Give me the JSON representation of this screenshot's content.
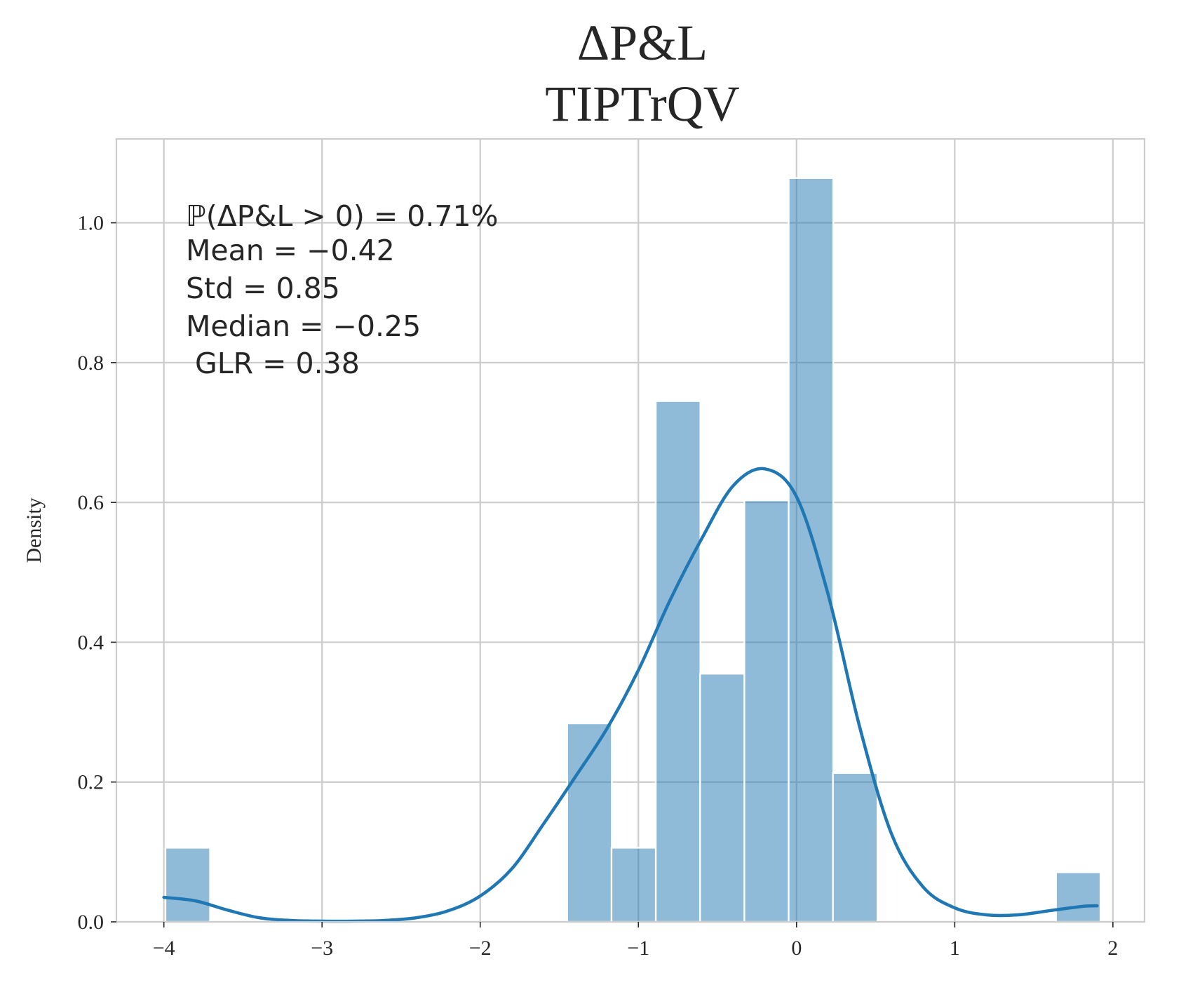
{
  "chart_data": {
    "type": "bar",
    "title": "ΔP&L",
    "subtitle": "TIPTrQV",
    "xlabel": "",
    "ylabel": "Density",
    "xlim": [
      -4.3,
      2.2
    ],
    "ylim": [
      0.0,
      1.12
    ],
    "xticks": [
      -4,
      -3,
      -2,
      -1,
      0,
      1,
      2
    ],
    "xtick_labels": [
      "−4",
      "−3",
      "−2",
      "−1",
      "0",
      "1",
      "2"
    ],
    "yticks": [
      0.0,
      0.2,
      0.4,
      0.6,
      0.8,
      1.0
    ],
    "ytick_labels": [
      "0.0",
      "0.2",
      "0.4",
      "0.6",
      "0.8",
      "1.0"
    ],
    "grid": true,
    "bin_width": 0.282,
    "bins": [
      {
        "left": -3.99,
        "density": 0.106
      },
      {
        "left": -1.45,
        "density": 0.284
      },
      {
        "left": -1.17,
        "density": 0.106
      },
      {
        "left": -0.89,
        "density": 0.745
      },
      {
        "left": -0.61,
        "density": 0.355
      },
      {
        "left": -0.33,
        "density": 0.603
      },
      {
        "left": -0.05,
        "density": 1.064
      },
      {
        "left": 0.23,
        "density": 0.213
      },
      {
        "left": 1.64,
        "density": 0.071
      }
    ],
    "kde": {
      "x": [
        -4.0,
        -3.8,
        -3.6,
        -3.4,
        -3.2,
        -3.0,
        -2.8,
        -2.6,
        -2.4,
        -2.2,
        -2.0,
        -1.8,
        -1.6,
        -1.4,
        -1.2,
        -1.0,
        -0.8,
        -0.6,
        -0.4,
        -0.2,
        0.0,
        0.2,
        0.4,
        0.6,
        0.8,
        1.0,
        1.2,
        1.4,
        1.6,
        1.8,
        1.9
      ],
      "y": [
        0.035,
        0.03,
        0.017,
        0.006,
        0.002,
        0.001,
        0.001,
        0.002,
        0.006,
        0.016,
        0.037,
        0.076,
        0.14,
        0.207,
        0.276,
        0.36,
        0.46,
        0.548,
        0.624,
        0.648,
        0.608,
        0.468,
        0.278,
        0.126,
        0.05,
        0.02,
        0.01,
        0.01,
        0.016,
        0.022,
        0.023
      ]
    },
    "annotations": {
      "prob": "ℙ(ΔP&L > 0) = 0.71%",
      "mean": "Mean = −0.42",
      "std": "Std = 0.85",
      "median": "Median = −0.25",
      "glr": "GLR = 0.38"
    },
    "colors": {
      "bar": "#1f77b4",
      "kde": "#1f77b4",
      "grid": "#cccccc"
    }
  }
}
